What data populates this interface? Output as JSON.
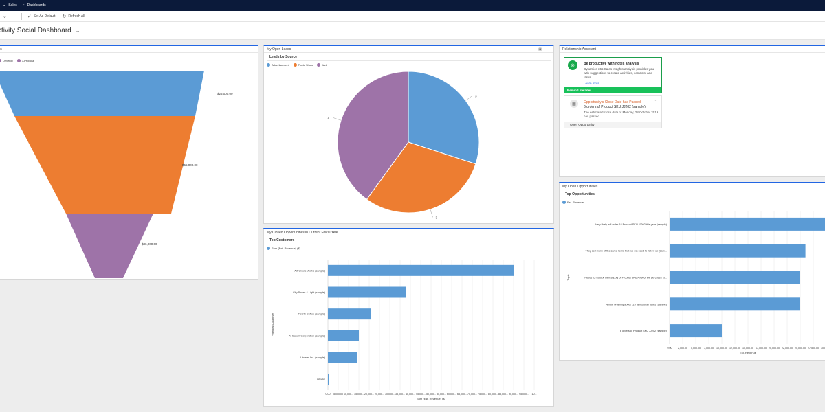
{
  "nav": {
    "chevron": "chevron-down-icon",
    "crumb1": "Sales",
    "sep": ">",
    "crumb2": "Dashboards"
  },
  "commands": {
    "set_default": "Set As Default",
    "refresh": "Refresh All"
  },
  "page": {
    "title": "ctivity Social Dashboard"
  },
  "colors": {
    "accent": "#2266e3",
    "blue": "#5b9bd5",
    "orange": "#ed7d31",
    "purple": "#9e73a8",
    "green": "#18c15a",
    "topbar": "#0b1a3a"
  },
  "funnel_panel": {
    "title": "ties",
    "legend": [
      {
        "label": "Develop",
        "color": "#9e73a8"
      },
      {
        "label": "3-Propose",
        "color": "#9e73a8"
      }
    ],
    "labels": [
      "$25,000.00",
      "$55,000.00",
      "$36,000.00"
    ],
    "chart_data": {
      "type": "funnel",
      "values": [
        25000,
        55000,
        36000
      ]
    }
  },
  "leads_panel": {
    "title": "My Open Leads",
    "subtitle": "Leads by Source",
    "legend": [
      {
        "label": "Advertisement",
        "color": "#5b9bd5"
      },
      {
        "label": "Trade Show",
        "color": "#ed7d31"
      },
      {
        "label": "Web",
        "color": "#9e73a8"
      }
    ],
    "chart_data": {
      "type": "pie",
      "categories": [
        "Advertisement",
        "Trade Show",
        "Web"
      ],
      "values": [
        3,
        3,
        4
      ]
    }
  },
  "closed_panel": {
    "title": "My Closed Opportunities in Current Fiscal Year",
    "subtitle": "Top Customers",
    "legend": "Sum (Est. Revenue) ($)",
    "ylabel": "Potential Customer",
    "xlabel": "Sum (Est. Revenue) ($)",
    "ticks": [
      "0.00",
      "5,000.00",
      "10,000...",
      "15,000...",
      "20,000...",
      "25,000...",
      "30,000...",
      "35,000...",
      "40,000...",
      "45,000...",
      "50,000...",
      "55,000...",
      "60,000...",
      "65,000...",
      "70,000...",
      "75,000...",
      "80,000...",
      "85,000...",
      "90,000...",
      "95,000...",
      "10..."
    ],
    "chart_data": {
      "type": "bar",
      "categories": [
        "Adventure Works (sample)",
        "City Power & Light (sample)",
        "Fourth Coffee (sample)",
        "A. Datum Corporation (sample)",
        "Litware, Inc. (sample)",
        "Gleeks"
      ],
      "values": [
        90000,
        38000,
        21000,
        15000,
        14000,
        300
      ],
      "xlim": [
        0,
        100000
      ]
    }
  },
  "ra_panel": {
    "title": "Relationship Assistant",
    "insight": {
      "title": "Be productive with notes analysis",
      "desc": "Dynamics 365 Sales Insights analysis provides you with suggestions to create activities, contacts, and tasks.",
      "link": "Learn more",
      "action": "Remind me later"
    },
    "opp": {
      "title": "Opportunity's Close Date has Passed",
      "subtitle": "6 orders of Product SKU JJ202 (sample)",
      "desc": "The estimated close date of Monday, 28 October 2019 has passed.",
      "action": "Open Opportunity",
      "more": "···"
    }
  },
  "open_opp_panel": {
    "title": "My Open Opportunities",
    "subtitle": "Top Opportunities",
    "legend": "Est. Revenue",
    "ylabel": "Topic",
    "xlabel": "Est. Revenue",
    "ticks": [
      "0.00",
      "2,500.00",
      "5,000.00",
      "7,500.00",
      "10,000.00",
      "12,500.00",
      "15,000.00",
      "17,500.00",
      "20,000.00",
      "22,500.00",
      "25,000.00",
      "27,500.00",
      "30,000.00"
    ],
    "chart_data": {
      "type": "bar",
      "categories": [
        "Very likely will order 18 Product SKU JJ202 this year (sample)",
        "They sell many of the same items that we do; need to follow up (sam...",
        "Needs to restock their supply of Product SKU AX305; will purchase st...",
        "Will be ordering about 110 items of all types (sample)",
        "6 orders of Product SKU JJ202 (sample)"
      ],
      "values": [
        30000,
        26000,
        25000,
        25000,
        10000
      ],
      "xlim": [
        0,
        30000
      ]
    }
  }
}
